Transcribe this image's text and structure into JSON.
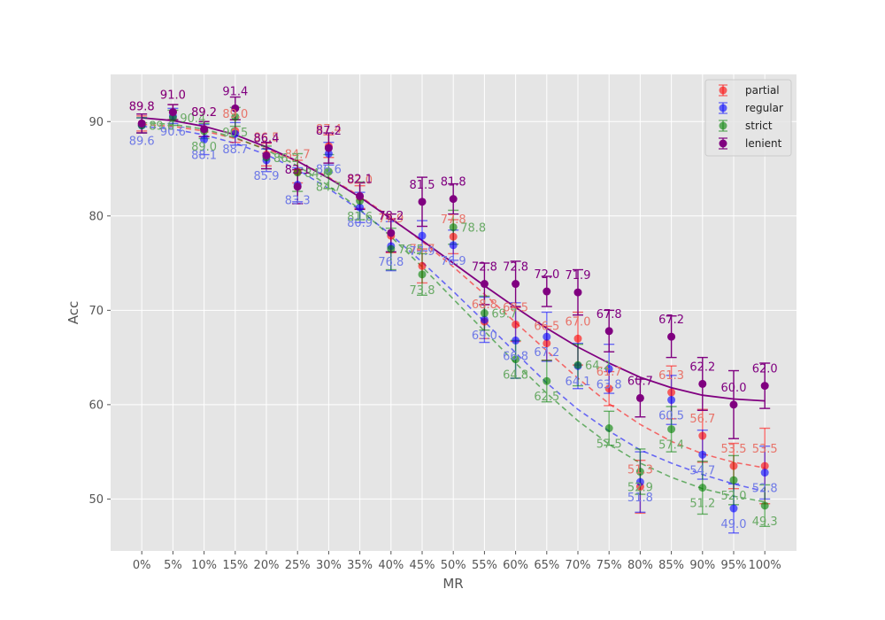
{
  "chart_data": {
    "type": "scatter",
    "title": "",
    "xlabel": "MR",
    "ylabel": "Acc",
    "categories": [
      "0%",
      "5%",
      "10%",
      "15%",
      "20%",
      "25%",
      "30%",
      "35%",
      "40%",
      "45%",
      "50%",
      "55%",
      "60%",
      "65%",
      "70%",
      "75%",
      "80%",
      "85%",
      "90%",
      "95%",
      "100%"
    ],
    "ylim": [
      44.5,
      95
    ],
    "yticks": [
      50,
      60,
      70,
      80,
      90
    ],
    "grid": true,
    "legend_position": "top-right",
    "series": [
      {
        "name": "partial",
        "color": "#ff0000",
        "label_color": "#e8746a",
        "values": [
          89.8,
          91.0,
          89.2,
          89.0,
          86.5,
          84.7,
          87.4,
          82.0,
          77.9,
          74.7,
          77.8,
          68.8,
          68.5,
          66.5,
          67.0,
          61.7,
          51.3,
          61.3,
          56.7,
          53.5,
          53.5
        ],
        "errors": [
          0.8,
          0.8,
          0.8,
          1.2,
          1.2,
          1.2,
          1.2,
          1.2,
          1.8,
          1.8,
          1.8,
          1.8,
          1.8,
          1.8,
          2.8,
          1.8,
          2.8,
          2.8,
          2.8,
          2.4,
          4.0
        ],
        "labels": [
          "89.8",
          "91.0",
          "89.2",
          "89.0",
          "86.5",
          "84.7",
          "87.4",
          "82.0",
          "77.9",
          "74.7",
          "77.8",
          "68.8",
          "68.5",
          "66.5",
          "67.0",
          "61.7",
          "51.3",
          "61.3",
          "56.7",
          "53.5",
          "53.5"
        ],
        "label_side": [
          "up",
          "up",
          "up",
          "up",
          "up",
          "up",
          "up",
          "up",
          "up",
          "up",
          "up",
          "up",
          "up",
          "up",
          "up",
          "up",
          "up",
          "up",
          "up",
          "up",
          "up"
        ],
        "fit": [
          89.7,
          89.5,
          89.0,
          88.2,
          87.1,
          85.8,
          84.1,
          82.1,
          79.8,
          77.3,
          74.6,
          71.7,
          68.7,
          65.7,
          62.8,
          60.1,
          57.9,
          56.1,
          54.8,
          53.9,
          53.3
        ]
      },
      {
        "name": "regular",
        "color": "#0000ff",
        "label_color": "#6f7ae6",
        "values": [
          89.6,
          90.6,
          88.1,
          88.7,
          85.9,
          83.3,
          86.6,
          80.9,
          76.8,
          77.9,
          76.9,
          69.0,
          66.8,
          67.2,
          64.1,
          63.8,
          51.8,
          60.5,
          54.7,
          49.0,
          52.8
        ],
        "errors": [
          0.8,
          0.8,
          1.6,
          1.2,
          1.2,
          1.8,
          1.2,
          1.6,
          2.6,
          1.6,
          1.6,
          2.4,
          4.0,
          2.6,
          2.4,
          2.6,
          3.2,
          2.6,
          2.6,
          2.6,
          2.8
        ],
        "labels": [
          "89.6",
          "90.6",
          "88.1",
          "88.7",
          "85.9",
          "83.3",
          "86.6",
          "80.9",
          "76.8",
          "77.9",
          "76.9",
          "69.0",
          "66.8",
          "67.2",
          "64.1",
          "63.8",
          "51.8",
          "60.5",
          "54.7",
          "49.0",
          "52.8"
        ],
        "label_side": [
          "down",
          "down",
          "down",
          "down",
          "down",
          "down",
          "down",
          "down",
          "down",
          "down",
          "down",
          "down",
          "down",
          "down",
          "down",
          "down",
          "down",
          "down",
          "down",
          "down",
          "down"
        ],
        "fit": [
          89.5,
          89.2,
          88.6,
          87.7,
          86.5,
          84.9,
          82.9,
          80.6,
          78.0,
          75.1,
          72.0,
          68.8,
          65.5,
          62.3,
          59.5,
          57.2,
          55.2,
          53.8,
          52.6,
          51.6,
          50.8
        ]
      },
      {
        "name": "strict",
        "color": "#008000",
        "label_color": "#6aaa66",
        "values": [
          89.6,
          90.4,
          89.0,
          90.5,
          86.2,
          84.6,
          84.7,
          81.6,
          76.5,
          73.8,
          78.8,
          69.7,
          64.8,
          62.5,
          64.2,
          57.5,
          52.9,
          57.4,
          51.2,
          52.0,
          49.3
        ],
        "errors": [
          0.8,
          0.8,
          0.8,
          1.0,
          1.2,
          2.0,
          1.8,
          2.0,
          2.2,
          2.2,
          1.8,
          1.8,
          2.0,
          2.2,
          2.2,
          1.8,
          2.4,
          2.4,
          2.8,
          2.6,
          2.2
        ],
        "labels": [
          "89.6",
          "90.4",
          "89.0",
          "90.5",
          "86.2",
          "84.6",
          "84.7",
          "81.6",
          "76.5",
          "73.8",
          "78.8",
          "69.7",
          "64.8",
          "62.5",
          "64.2",
          "57.5",
          "52.9",
          "57.4",
          "51.2",
          "52.0",
          "49.3"
        ],
        "label_side": [
          "right",
          "right",
          "down",
          "down",
          "right",
          "right",
          "down",
          "down",
          "right",
          "down",
          "right",
          "right",
          "down",
          "down",
          "right",
          "down",
          "down",
          "down",
          "down",
          "down",
          "down"
        ],
        "fit": [
          89.9,
          89.7,
          89.2,
          88.3,
          87.0,
          85.3,
          83.2,
          80.7,
          77.8,
          74.6,
          71.2,
          67.8,
          64.4,
          61.2,
          58.3,
          55.8,
          53.8,
          52.3,
          51.1,
          50.3,
          49.7
        ]
      },
      {
        "name": "lenient",
        "color": "#800080",
        "label_color": "#800080",
        "values": [
          89.8,
          91.0,
          89.2,
          91.4,
          86.4,
          83.1,
          87.2,
          82.1,
          78.2,
          81.5,
          81.8,
          72.8,
          72.8,
          72.0,
          71.9,
          67.8,
          60.7,
          67.2,
          62.2,
          60.0,
          62.0
        ],
        "errors": [
          1.0,
          0.8,
          0.8,
          1.2,
          1.4,
          1.8,
          1.6,
          1.4,
          2.0,
          2.6,
          1.6,
          2.2,
          2.4,
          1.6,
          2.4,
          2.2,
          2.0,
          2.2,
          2.8,
          3.6,
          2.4
        ],
        "labels": [
          "89.8",
          "91.0",
          "89.2",
          "91.4",
          "86.4",
          "83.1",
          "87.2",
          "82.1",
          "78.2",
          "81.5",
          "81.8",
          "72.8",
          "72.8",
          "72.0",
          "71.9",
          "67.8",
          "60.7",
          "67.2",
          "62.2",
          "60.0",
          "62.0"
        ],
        "label_side": [
          "up",
          "up",
          "up",
          "up",
          "up",
          "up",
          "up",
          "up",
          "up",
          "up",
          "up",
          "up",
          "up",
          "up",
          "up",
          "up",
          "up",
          "up",
          "up",
          "up",
          "up"
        ],
        "fit": [
          90.4,
          90.1,
          89.5,
          88.6,
          87.3,
          85.8,
          84.0,
          82.0,
          79.7,
          77.4,
          75.0,
          72.6,
          70.3,
          68.1,
          66.1,
          64.4,
          62.9,
          61.8,
          61.0,
          60.6,
          60.4
        ]
      }
    ]
  }
}
